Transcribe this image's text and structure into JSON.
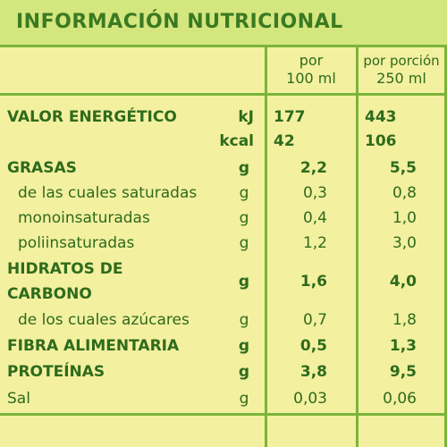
{
  "title": "INFORMACIÓN NUTRICIONAL",
  "columns": {
    "per100": [
      "por",
      "100 ml"
    ],
    "perServing": [
      "por porción",
      "250 ml"
    ]
  },
  "energy": {
    "label": "VALOR ENERGÉTICO",
    "kj": {
      "unit": "kJ",
      "per100": "177",
      "perServing": "443"
    },
    "kcal": {
      "unit": "kcal",
      "per100": "42",
      "perServing": "106"
    }
  },
  "rows": [
    {
      "label": "GRASAS",
      "unit": "g",
      "per100": "2,2",
      "perServing": "5,5",
      "bold": true
    },
    {
      "label": "de las cuales saturadas",
      "unit": "g",
      "per100": "0,3",
      "perServing": "0,8"
    },
    {
      "label": "monoinsaturadas",
      "unit": "g",
      "per100": "0,4",
      "perServing": "1,0"
    },
    {
      "label": "poliinsaturadas",
      "unit": "g",
      "per100": "1,2",
      "perServing": "3,0"
    },
    {
      "label": "HIDRATOS DE",
      "label2": "CARBONO",
      "unit": "g",
      "per100": "1,6",
      "perServing": "4,0",
      "bold": true
    },
    {
      "label": "de los cuales azúcares",
      "unit": "g",
      "per100": "0,7",
      "perServing": "1,8"
    },
    {
      "label": "FIBRA ALIMENTARIA",
      "unit": "g",
      "per100": "0,5",
      "perServing": "1,3",
      "bold": true
    },
    {
      "label": "PROTEÍNAS",
      "unit": "g",
      "per100": "3,8",
      "perServing": "9,5",
      "bold": true
    },
    {
      "label": "Sal",
      "unit": "g",
      "per100": "0,03",
      "perServing": "0,06"
    }
  ]
}
